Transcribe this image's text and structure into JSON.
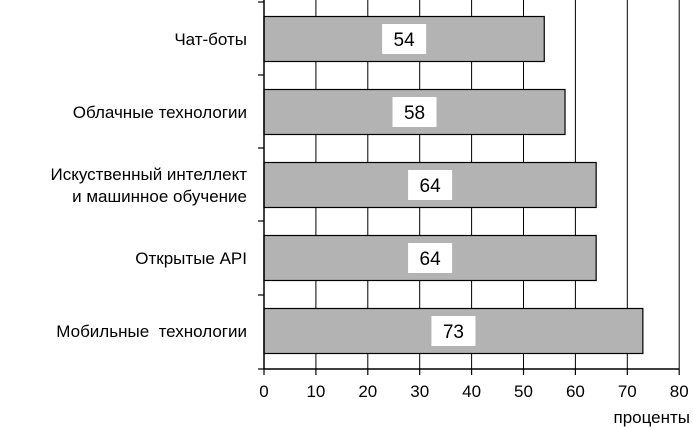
{
  "chart_data": {
    "type": "bar",
    "orientation": "horizontal",
    "categories": [
      [
        "Чат-боты"
      ],
      [
        "Облачные технологии"
      ],
      [
        "Искуственный интеллект",
        "и машинное обучение"
      ],
      [
        "Открытые API"
      ],
      [
        "Мобильные  технологии"
      ]
    ],
    "values": [
      54,
      58,
      64,
      64,
      73
    ],
    "data_labels": [
      "54",
      "58",
      "64",
      "64",
      "73"
    ],
    "xlabel": "проценты",
    "xlim": [
      0,
      80
    ],
    "xticks": [
      0,
      10,
      20,
      30,
      40,
      50,
      60,
      70,
      80
    ],
    "grid": "vertical",
    "colors": {
      "bar_fill": "#b3b3b3",
      "bar_stroke": "#000000",
      "label_box": "#ffffff",
      "grid": "#000000"
    }
  }
}
